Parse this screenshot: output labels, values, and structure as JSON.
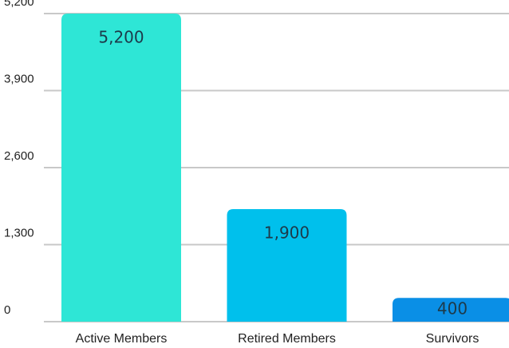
{
  "chart_data": {
    "type": "bar",
    "categories": [
      "Active Members",
      "Retired Members",
      "Survivors"
    ],
    "values": [
      5200,
      1900,
      400
    ],
    "value_labels": [
      "5,200",
      "1,900",
      "400"
    ],
    "colors": [
      "#2ee6d6",
      "#00c0ec",
      "#0a8fe6"
    ],
    "ylim": [
      0,
      5200
    ],
    "yticks": [
      0,
      {
        "value": 1300,
        "label": "1,300"
      },
      {
        "value": 2600,
        "label": "2,600"
      },
      {
        "value": 3900,
        "label": "3,900"
      },
      {
        "value": 5200,
        "label": "5,200"
      }
    ],
    "grid": true
  }
}
